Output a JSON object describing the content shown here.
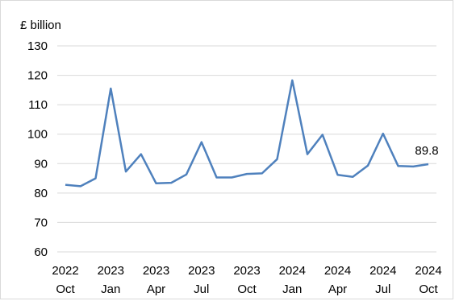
{
  "chart_data": {
    "type": "line",
    "ylabel": "£ billion",
    "ylim": [
      60,
      130
    ],
    "yticks": [
      60,
      70,
      80,
      90,
      100,
      110,
      120,
      130
    ],
    "grid": "horizontal",
    "x": [
      "2022 Oct",
      "2022 Nov",
      "2022 Dec",
      "2023 Jan",
      "2023 Feb",
      "2023 Mar",
      "2023 Apr",
      "2023 May",
      "2023 Jun",
      "2023 Jul",
      "2023 Aug",
      "2023 Sep",
      "2023 Oct",
      "2023 Nov",
      "2023 Dec",
      "2024 Jan",
      "2024 Feb",
      "2024 Mar",
      "2024 Apr",
      "2024 May",
      "2024 Jun",
      "2024 Jul",
      "2024 Aug",
      "2024 Sep",
      "2024 Oct"
    ],
    "xtick_labels": [
      {
        "index": 0,
        "year": "2022",
        "month": "Oct"
      },
      {
        "index": 3,
        "year": "2023",
        "month": "Jan"
      },
      {
        "index": 6,
        "year": "2023",
        "month": "Apr"
      },
      {
        "index": 9,
        "year": "2023",
        "month": "Jul"
      },
      {
        "index": 12,
        "year": "2023",
        "month": "Oct"
      },
      {
        "index": 15,
        "year": "2024",
        "month": "Jan"
      },
      {
        "index": 18,
        "year": "2024",
        "month": "Apr"
      },
      {
        "index": 21,
        "year": "2024",
        "month": "Jul"
      },
      {
        "index": 24,
        "year": "2024",
        "month": "Oct"
      }
    ],
    "series": [
      {
        "values": [
          82.8,
          82.3,
          85.0,
          115.5,
          87.3,
          93.2,
          83.3,
          83.5,
          86.3,
          97.3,
          85.3,
          85.3,
          86.5,
          86.7,
          91.5,
          118.3,
          93.2,
          99.8,
          86.2,
          85.5,
          89.3,
          100.2,
          89.2,
          89.0,
          89.8
        ],
        "color": "#4f81bd"
      }
    ],
    "data_labels": [
      {
        "index": 24,
        "text": "89.8"
      }
    ]
  }
}
